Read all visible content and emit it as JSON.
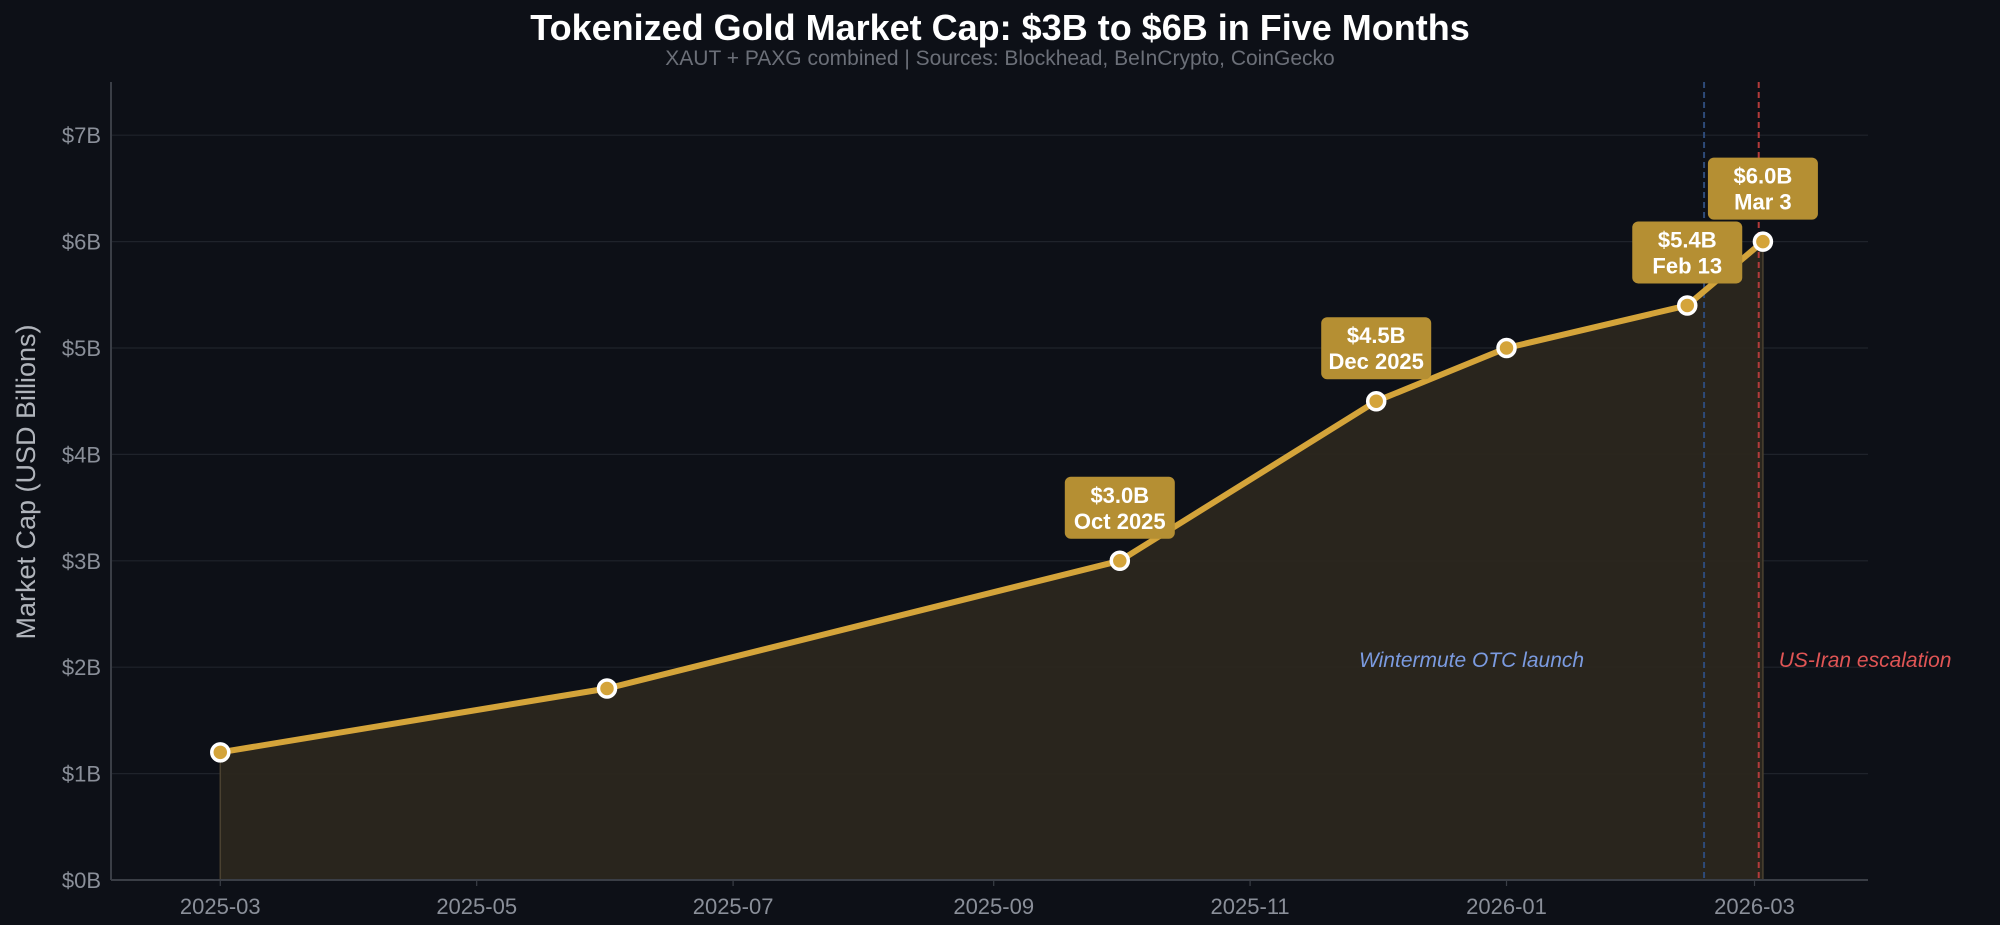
{
  "chart_data": {
    "type": "area",
    "title": "Tokenized Gold Market Cap: $3B to $6B in Five Months",
    "subtitle": "XAUT + PAXG combined  |  Sources: Blockhead, BeInCrypto, CoinGecko",
    "xlabel": "",
    "ylabel": "Market Cap (USD Billions)",
    "ylim": [
      0,
      7.5
    ],
    "xlim": [
      "2025-02-03",
      "2026-03-28"
    ],
    "yticks": [
      {
        "value": 0,
        "label": "$0B"
      },
      {
        "value": 1,
        "label": "$1B"
      },
      {
        "value": 2,
        "label": "$2B"
      },
      {
        "value": 3,
        "label": "$3B"
      },
      {
        "value": 4,
        "label": "$4B"
      },
      {
        "value": 5,
        "label": "$5B"
      },
      {
        "value": 6,
        "label": "$6B"
      },
      {
        "value": 7,
        "label": "$7B"
      }
    ],
    "xticks": [
      {
        "value": "2025-03-01",
        "label": "2025-03"
      },
      {
        "value": "2025-05-01",
        "label": "2025-05"
      },
      {
        "value": "2025-07-01",
        "label": "2025-07"
      },
      {
        "value": "2025-09-01",
        "label": "2025-09"
      },
      {
        "value": "2025-11-01",
        "label": "2025-11"
      },
      {
        "value": "2026-01-01",
        "label": "2026-01"
      },
      {
        "value": "2026-03-01",
        "label": "2026-03"
      }
    ],
    "grid": true,
    "series": [
      {
        "x": [
          "2025-03-01",
          "2025-06-01",
          "2025-10-01",
          "2025-12-01",
          "2026-01-01",
          "2026-02-13",
          "2026-03-03"
        ],
        "values": [
          1.2,
          1.8,
          3.0,
          4.5,
          5.0,
          5.4,
          6.0
        ]
      }
    ],
    "annotations": [
      {
        "x": "2025-10-01",
        "y": 3.0,
        "line1": "$3.0B",
        "line2": "Oct 2025"
      },
      {
        "x": "2025-12-01",
        "y": 4.5,
        "line1": "$4.5B",
        "line2": "Dec 2025"
      },
      {
        "x": "2026-02-13",
        "y": 5.4,
        "line1": "$5.4B",
        "line2": "Feb 13"
      },
      {
        "x": "2026-03-03",
        "y": 6.0,
        "line1": "$6.0B",
        "line2": "Mar 3"
      }
    ],
    "events": [
      {
        "x": "2026-02-17",
        "label": "Wintermute OTC launch",
        "color": "#7b9be0",
        "line_color": "#2e4a78",
        "label_side": "left"
      },
      {
        "x": "2026-03-02",
        "label": "US-Iran escalation",
        "color": "#e05555",
        "line_color": "#b33a3a",
        "label_side": "right"
      }
    ],
    "colors": {
      "background": "#0d1017",
      "line": "#d4a43a",
      "fill": "#2b271d",
      "callout": "#b58f33",
      "grid": "#1f232b",
      "axis": "#3a3e46"
    }
  }
}
